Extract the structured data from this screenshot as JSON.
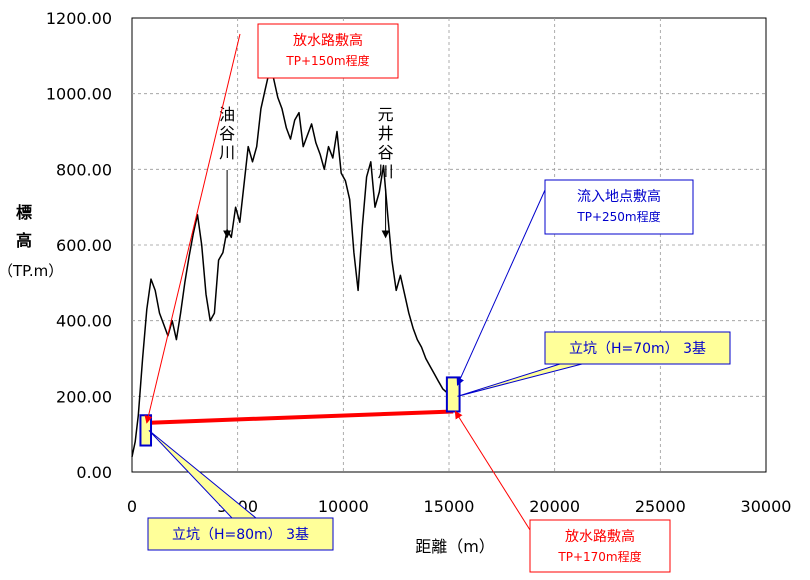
{
  "chart_data": {
    "type": "line",
    "xlabel": "距離（m）",
    "ylabel": [
      "標",
      "高",
      "（TP.m）"
    ],
    "xlim": [
      0,
      30000
    ],
    "ylim": [
      0,
      1200
    ],
    "x_ticks": [
      "0",
      "5000",
      "10000",
      "15000",
      "20000",
      "25000",
      "30000"
    ],
    "y_ticks": [
      "0.00",
      "200.00",
      "400.00",
      "600.00",
      "800.00",
      "1000.00",
      "1200.00"
    ],
    "grid": true,
    "series": [
      {
        "kind": "terrain-profile",
        "color": "#000000",
        "x": [
          0,
          150,
          300,
          500,
          700,
          900,
          1100,
          1300,
          1500,
          1700,
          1900,
          2100,
          2300,
          2500,
          2700,
          2900,
          3100,
          3300,
          3500,
          3700,
          3900,
          4100,
          4300,
          4500,
          4700,
          4900,
          5100,
          5300,
          5500,
          5700,
          5900,
          6100,
          6300,
          6500,
          6700,
          6900,
          7100,
          7300,
          7500,
          7700,
          7900,
          8100,
          8300,
          8500,
          8700,
          8900,
          9100,
          9300,
          9500,
          9700,
          9900,
          10100,
          10300,
          10500,
          10700,
          10900,
          11100,
          11300,
          11500,
          11700,
          11900,
          12100,
          12300,
          12500,
          12700,
          12900,
          13100,
          13300,
          13500,
          13700,
          13900,
          14100,
          14300,
          14500,
          14700,
          14900,
          15100
        ],
        "y": [
          40,
          80,
          150,
          300,
          430,
          510,
          480,
          420,
          390,
          360,
          400,
          350,
          420,
          500,
          570,
          630,
          680,
          600,
          470,
          400,
          420,
          560,
          580,
          640,
          620,
          700,
          660,
          760,
          860,
          820,
          860,
          960,
          1010,
          1060,
          1040,
          990,
          960,
          910,
          880,
          930,
          950,
          860,
          890,
          920,
          870,
          840,
          800,
          860,
          830,
          900,
          790,
          770,
          720,
          580,
          480,
          650,
          780,
          820,
          700,
          740,
          810,
          680,
          560,
          480,
          520,
          470,
          420,
          380,
          350,
          330,
          300,
          280,
          260,
          240,
          220,
          210,
          205
        ]
      },
      {
        "kind": "tunnel",
        "color": "#ff0000",
        "x": [
          700,
          15200
        ],
        "y": [
          130,
          160
        ]
      }
    ],
    "shafts": [
      {
        "x": [
          400,
          900
        ],
        "y": [
          70,
          150
        ],
        "fill": "#ffff99",
        "stroke": "#0000cc"
      },
      {
        "x": [
          14900,
          15500
        ],
        "y": [
          160,
          250
        ],
        "fill": "#ffff99",
        "stroke": "#0000cc"
      }
    ],
    "annotations": [
      {
        "id": "outlet-upstream",
        "lines": [
          "放水路敷高",
          "TP+150m程度"
        ],
        "color": "#ff0000",
        "target": [
          700,
          130
        ]
      },
      {
        "id": "inflow-point",
        "lines": [
          "流入地点敷高",
          "TP+250m程度"
        ],
        "color": "#0000cc",
        "target": [
          15400,
          230
        ]
      },
      {
        "id": "shaft-right",
        "lines": [
          "立坑（H=70m） 3基"
        ],
        "color": "#0000cc",
        "fill": "#ffff99",
        "target": [
          15400,
          200
        ]
      },
      {
        "id": "shaft-left",
        "lines": [
          "立坑（H=80m） 3基"
        ],
        "color": "#0000cc",
        "fill": "#ffff99",
        "target": [
          800,
          110
        ]
      },
      {
        "id": "outlet-downstream",
        "lines": [
          "放水路敷高",
          "TP+170m程度"
        ],
        "color": "#ff0000",
        "target": [
          15300,
          160
        ]
      }
    ],
    "river_labels": [
      {
        "id": "abura",
        "text": [
          "油",
          "谷",
          "川"
        ],
        "x": 4500,
        "arrow_to_y": 620
      },
      {
        "id": "motoi",
        "text": [
          "元",
          "井",
          "谷",
          "川"
        ],
        "x": 12000,
        "arrow_to_y": 620
      }
    ]
  }
}
